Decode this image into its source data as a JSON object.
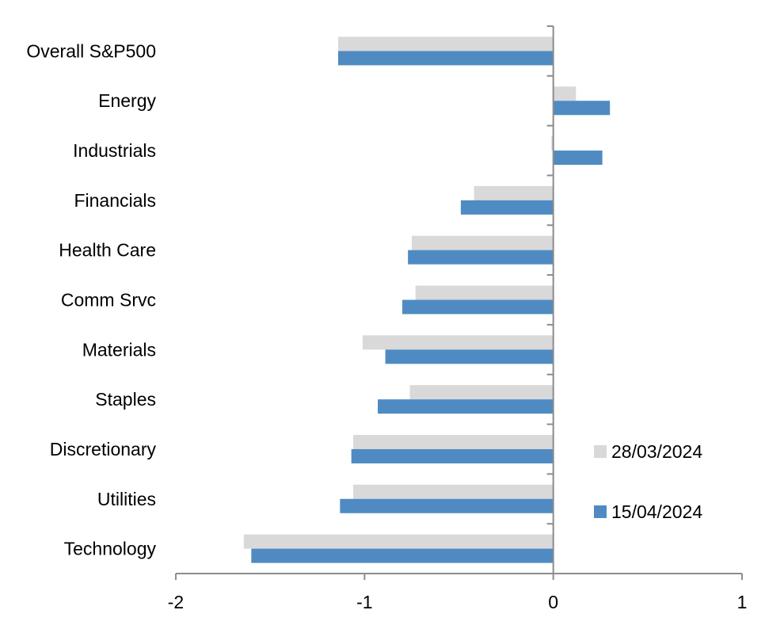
{
  "chart_data": {
    "type": "bar",
    "orientation": "horizontal",
    "categories": [
      "Overall S&P500",
      "Energy",
      "Industrials",
      "Financials",
      "Health Care",
      "Comm Srvc",
      "Materials",
      "Staples",
      "Discretionary",
      "Utilities",
      "Technology"
    ],
    "series": [
      {
        "name": "28/03/2024",
        "color": "#d9d9d9",
        "values": [
          -1.14,
          0.12,
          -0.01,
          -0.42,
          -0.75,
          -0.73,
          -1.01,
          -0.76,
          -1.06,
          -1.06,
          -1.64
        ]
      },
      {
        "name": "15/04/2024",
        "color": "#4f8bc2",
        "values": [
          -1.14,
          0.3,
          0.26,
          -0.49,
          -0.77,
          -0.8,
          -0.89,
          -0.93,
          -1.07,
          -1.13,
          -1.6
        ]
      }
    ],
    "xlim": [
      -2,
      1
    ],
    "xticks": [
      "-2",
      "-1",
      "0",
      "1"
    ],
    "grid": false,
    "legend_position": "bottom-right",
    "title": "",
    "xlabel": "",
    "ylabel": ""
  }
}
